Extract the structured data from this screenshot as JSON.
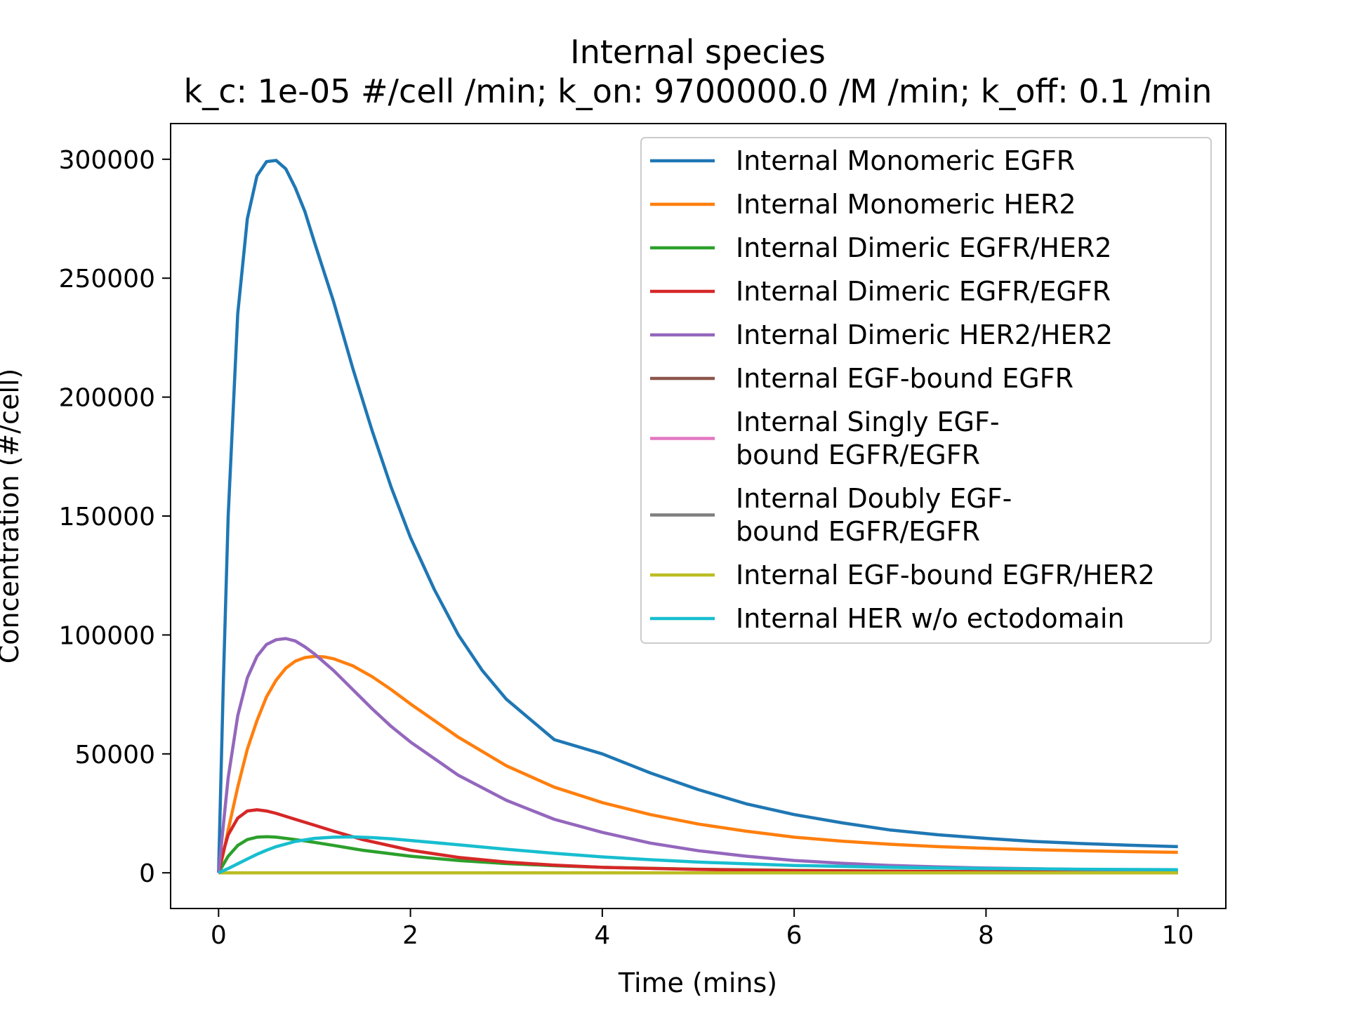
{
  "chart_data": {
    "type": "line",
    "title": "Internal species",
    "subtitle": "k_c: 1e-05 #/cell /min; k_on: 9700000.0 /M /min; k_off: 0.1 /min",
    "xlabel": "Time (mins)",
    "ylabel": "Concentration (#/cell)",
    "xlim": [
      -0.5,
      10.5
    ],
    "ylim": [
      -15000,
      315000
    ],
    "xticks": [
      0,
      2,
      4,
      6,
      8,
      10
    ],
    "xtick_labels": [
      "0",
      "2",
      "4",
      "6",
      "8",
      "10"
    ],
    "yticks": [
      0,
      50000,
      100000,
      150000,
      200000,
      250000,
      300000
    ],
    "ytick_labels": [
      "0",
      "50000",
      "100000",
      "150000",
      "200000",
      "250000",
      "300000"
    ],
    "grid": false,
    "legend_position": "top-right",
    "series": [
      {
        "name": "Internal Monomeric EGFR",
        "label_lines": [
          "Internal Monomeric EGFR"
        ],
        "color": "#1f77b4",
        "points": [
          [
            0,
            0
          ],
          [
            0.05,
            80000
          ],
          [
            0.1,
            150000
          ],
          [
            0.2,
            235000
          ],
          [
            0.3,
            275000
          ],
          [
            0.4,
            293000
          ],
          [
            0.5,
            299000
          ],
          [
            0.6,
            299500
          ],
          [
            0.7,
            296000
          ],
          [
            0.8,
            288000
          ],
          [
            0.9,
            278000
          ],
          [
            1.0,
            265000
          ],
          [
            1.2,
            240000
          ],
          [
            1.4,
            212000
          ],
          [
            1.6,
            186000
          ],
          [
            1.8,
            162000
          ],
          [
            2.0,
            141000
          ],
          [
            2.25,
            119000
          ],
          [
            2.5,
            100000
          ],
          [
            2.75,
            85000
          ],
          [
            3.0,
            73000
          ],
          [
            3.5,
            56000
          ],
          [
            4.0,
            50000
          ],
          [
            4.5,
            42000
          ],
          [
            5.0,
            35000
          ],
          [
            5.5,
            29000
          ],
          [
            6.0,
            24500
          ],
          [
            6.5,
            21000
          ],
          [
            7.0,
            18000
          ],
          [
            7.5,
            16000
          ],
          [
            8.0,
            14500
          ],
          [
            8.5,
            13200
          ],
          [
            9.0,
            12300
          ],
          [
            9.5,
            11600
          ],
          [
            10.0,
            11000
          ]
        ]
      },
      {
        "name": "Internal Monomeric HER2",
        "label_lines": [
          "Internal Monomeric HER2"
        ],
        "color": "#ff7f0e",
        "points": [
          [
            0,
            0
          ],
          [
            0.05,
            8000
          ],
          [
            0.1,
            18000
          ],
          [
            0.2,
            36000
          ],
          [
            0.3,
            52000
          ],
          [
            0.4,
            64000
          ],
          [
            0.5,
            74000
          ],
          [
            0.6,
            81000
          ],
          [
            0.7,
            86000
          ],
          [
            0.8,
            89000
          ],
          [
            0.9,
            90500
          ],
          [
            1.0,
            91000
          ],
          [
            1.1,
            90800
          ],
          [
            1.2,
            90000
          ],
          [
            1.4,
            87000
          ],
          [
            1.6,
            82500
          ],
          [
            1.8,
            77000
          ],
          [
            2.0,
            71000
          ],
          [
            2.5,
            57000
          ],
          [
            3.0,
            45000
          ],
          [
            3.5,
            36000
          ],
          [
            4.0,
            29500
          ],
          [
            4.5,
            24500
          ],
          [
            5.0,
            20500
          ],
          [
            5.5,
            17500
          ],
          [
            6.0,
            15000
          ],
          [
            6.5,
            13300
          ],
          [
            7.0,
            12000
          ],
          [
            7.5,
            11000
          ],
          [
            8.0,
            10300
          ],
          [
            8.5,
            9700
          ],
          [
            9.0,
            9300
          ],
          [
            9.5,
            8900
          ],
          [
            10.0,
            8600
          ]
        ]
      },
      {
        "name": "Internal Dimeric EGFR/HER2",
        "label_lines": [
          "Internal Dimeric EGFR/HER2"
        ],
        "color": "#2ca02c",
        "points": [
          [
            0,
            0
          ],
          [
            0.05,
            3500
          ],
          [
            0.1,
            7000
          ],
          [
            0.2,
            11500
          ],
          [
            0.3,
            14000
          ],
          [
            0.4,
            15000
          ],
          [
            0.5,
            15200
          ],
          [
            0.6,
            15000
          ],
          [
            0.8,
            14000
          ],
          [
            1.0,
            12800
          ],
          [
            1.2,
            11500
          ],
          [
            1.5,
            9500
          ],
          [
            2.0,
            7000
          ],
          [
            2.5,
            5200
          ],
          [
            3.0,
            3900
          ],
          [
            3.5,
            3000
          ],
          [
            4.0,
            2300
          ],
          [
            5.0,
            1500
          ],
          [
            6.0,
            1000
          ],
          [
            7.0,
            700
          ],
          [
            8.0,
            500
          ],
          [
            9.0,
            400
          ],
          [
            10.0,
            300
          ]
        ]
      },
      {
        "name": "Internal Dimeric EGFR/EGFR",
        "label_lines": [
          "Internal Dimeric EGFR/EGFR"
        ],
        "color": "#d62728",
        "points": [
          [
            0,
            0
          ],
          [
            0.05,
            9000
          ],
          [
            0.1,
            16000
          ],
          [
            0.2,
            23000
          ],
          [
            0.3,
            26000
          ],
          [
            0.4,
            26500
          ],
          [
            0.5,
            26000
          ],
          [
            0.6,
            25000
          ],
          [
            0.8,
            22500
          ],
          [
            1.0,
            20000
          ],
          [
            1.2,
            17500
          ],
          [
            1.5,
            14000
          ],
          [
            2.0,
            9500
          ],
          [
            2.5,
            6500
          ],
          [
            3.0,
            4500
          ],
          [
            3.5,
            3200
          ],
          [
            4.0,
            2300
          ],
          [
            5.0,
            1400
          ],
          [
            6.0,
            900
          ],
          [
            7.0,
            600
          ],
          [
            8.0,
            450
          ],
          [
            9.0,
            350
          ],
          [
            10.0,
            300
          ]
        ]
      },
      {
        "name": "Internal Dimeric HER2/HER2",
        "label_lines": [
          "Internal Dimeric HER2/HER2"
        ],
        "color": "#9467bd",
        "points": [
          [
            0,
            0
          ],
          [
            0.05,
            20000
          ],
          [
            0.1,
            40000
          ],
          [
            0.2,
            66000
          ],
          [
            0.3,
            82000
          ],
          [
            0.4,
            91000
          ],
          [
            0.5,
            96000
          ],
          [
            0.6,
            98000
          ],
          [
            0.7,
            98500
          ],
          [
            0.8,
            97500
          ],
          [
            0.9,
            95000
          ],
          [
            1.0,
            92000
          ],
          [
            1.2,
            85000
          ],
          [
            1.4,
            77000
          ],
          [
            1.6,
            69000
          ],
          [
            1.8,
            61500
          ],
          [
            2.0,
            55000
          ],
          [
            2.5,
            41000
          ],
          [
            3.0,
            30500
          ],
          [
            3.5,
            22500
          ],
          [
            4.0,
            17000
          ],
          [
            4.5,
            12500
          ],
          [
            5.0,
            9300
          ],
          [
            5.5,
            7000
          ],
          [
            6.0,
            5200
          ],
          [
            6.5,
            4000
          ],
          [
            7.0,
            3100
          ],
          [
            7.5,
            2500
          ],
          [
            8.0,
            2000
          ],
          [
            9.0,
            1400
          ],
          [
            10.0,
            1100
          ]
        ]
      },
      {
        "name": "Internal EGF-bound EGFR",
        "label_lines": [
          "Internal EGF-bound EGFR"
        ],
        "color": "#8c564b",
        "points": [
          [
            0,
            0
          ],
          [
            10,
            0
          ]
        ]
      },
      {
        "name": "Internal Singly EGF- bound EGFR/EGFR",
        "label_lines": [
          "Internal Singly EGF-",
          "bound EGFR/EGFR"
        ],
        "color": "#e377c2",
        "points": [
          [
            0,
            0
          ],
          [
            10,
            0
          ]
        ]
      },
      {
        "name": "Internal Doubly EGF- bound EGFR/EGFR",
        "label_lines": [
          "Internal Doubly EGF-",
          "bound EGFR/EGFR"
        ],
        "color": "#7f7f7f",
        "points": [
          [
            0,
            0
          ],
          [
            10,
            0
          ]
        ]
      },
      {
        "name": "Internal EGF-bound EGFR/HER2",
        "label_lines": [
          "Internal EGF-bound EGFR/HER2"
        ],
        "color": "#bcbd22",
        "points": [
          [
            0,
            0
          ],
          [
            10,
            0
          ]
        ]
      },
      {
        "name": "Internal HER w/o ectodomain",
        "label_lines": [
          "Internal HER w/o ectodomain"
        ],
        "color": "#17becf",
        "points": [
          [
            0,
            0
          ],
          [
            0.1,
            1800
          ],
          [
            0.2,
            3800
          ],
          [
            0.3,
            5800
          ],
          [
            0.4,
            7800
          ],
          [
            0.5,
            9500
          ],
          [
            0.6,
            11000
          ],
          [
            0.8,
            13200
          ],
          [
            1.0,
            14500
          ],
          [
            1.2,
            15000
          ],
          [
            1.4,
            15100
          ],
          [
            1.6,
            14800
          ],
          [
            1.8,
            14300
          ],
          [
            2.0,
            13600
          ],
          [
            2.5,
            11800
          ],
          [
            3.0,
            9900
          ],
          [
            3.5,
            8200
          ],
          [
            4.0,
            6700
          ],
          [
            4.5,
            5500
          ],
          [
            5.0,
            4500
          ],
          [
            6.0,
            3100
          ],
          [
            7.0,
            2300
          ],
          [
            8.0,
            1800
          ],
          [
            9.0,
            1500
          ],
          [
            10.0,
            1300
          ]
        ]
      }
    ]
  }
}
